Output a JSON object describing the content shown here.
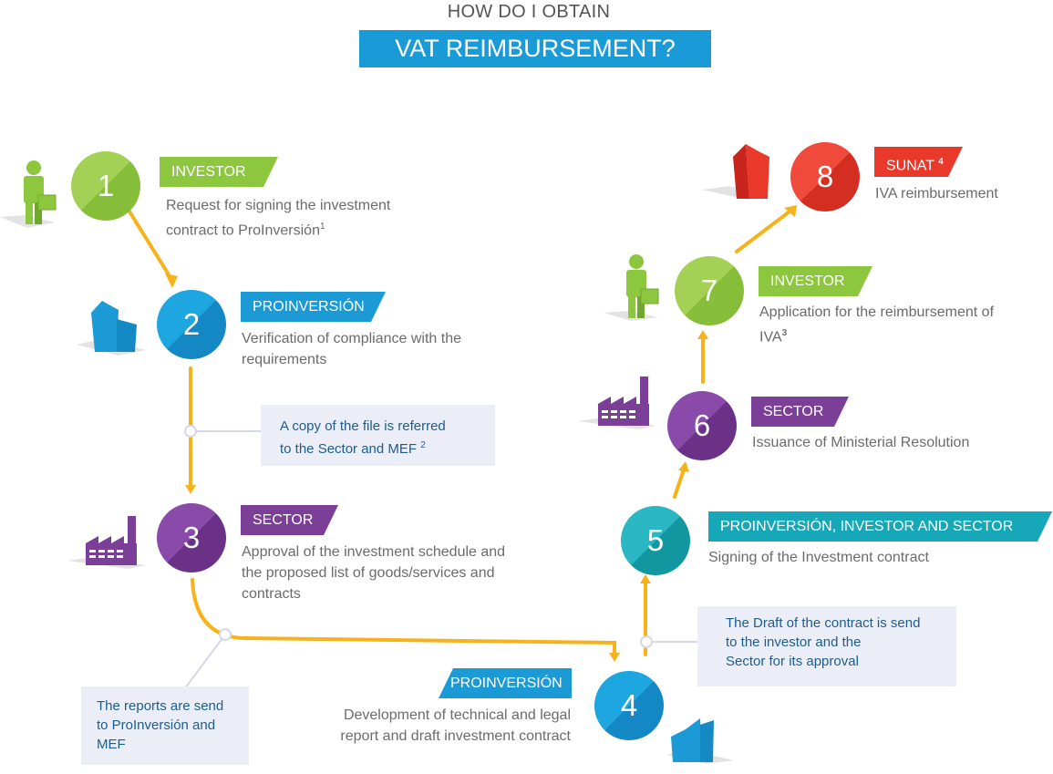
{
  "header": {
    "title_top": "HOW DO I OBTAIN",
    "title_main": "VAT REIMBURSEMENT?"
  },
  "colors": {
    "green": "#8dc63f",
    "blue": "#1b9ad6",
    "purple": "#7b3f98",
    "teal": "#16a8b8",
    "red": "#e8392b",
    "connector": "#f5b21b"
  },
  "steps": [
    {
      "num": "1",
      "tag": "INVESTOR",
      "desc_line1": "Request for signing the investment",
      "desc_line2": "contract to ProInversión",
      "sup": "1"
    },
    {
      "num": "2",
      "tag": "PROINVERSIÓN",
      "desc_line1": "Verification of compliance with the",
      "desc_line2": "requirements"
    },
    {
      "num": "3",
      "tag": "SECTOR",
      "desc_line1": "Approval of the investment schedule and",
      "desc_line2": "the proposed list of goods/services and",
      "desc_line3": "contracts"
    },
    {
      "num": "4",
      "tag": "PROINVERSIÓN",
      "desc_line1": "Development of technical and legal",
      "desc_line2": "report and draft investment contract"
    },
    {
      "num": "5",
      "tag": "PROINVERSIÓN, INVESTOR AND SECTOR",
      "desc_line1": "Signing of the Investment contract"
    },
    {
      "num": "6",
      "tag": "SECTOR",
      "desc_line1": "Issuance of Ministerial Resolution"
    },
    {
      "num": "7",
      "tag": "INVESTOR",
      "desc_line1": "Application for the reimbursement of",
      "desc_line2": "IVA",
      "sup": "3"
    },
    {
      "num": "8",
      "tag": "SUNAT",
      "tag_sup": "4",
      "desc_line1": "IVA reimbursement"
    }
  ],
  "notes": {
    "copy": {
      "line1": "A copy of the file is referred",
      "line2": "to the Sector and MEF",
      "sup": "2"
    },
    "reports": {
      "line1": "The reports are send",
      "line2": "to ProInversión and",
      "line3": "MEF"
    },
    "draft": {
      "line1": "The Draft of the contract is send",
      "line2": "to the investor and the",
      "line3": "Sector for its approval"
    }
  },
  "icons": [
    "investor-person-icon",
    "building-icon",
    "factory-icon",
    "sunat-building-icon"
  ]
}
